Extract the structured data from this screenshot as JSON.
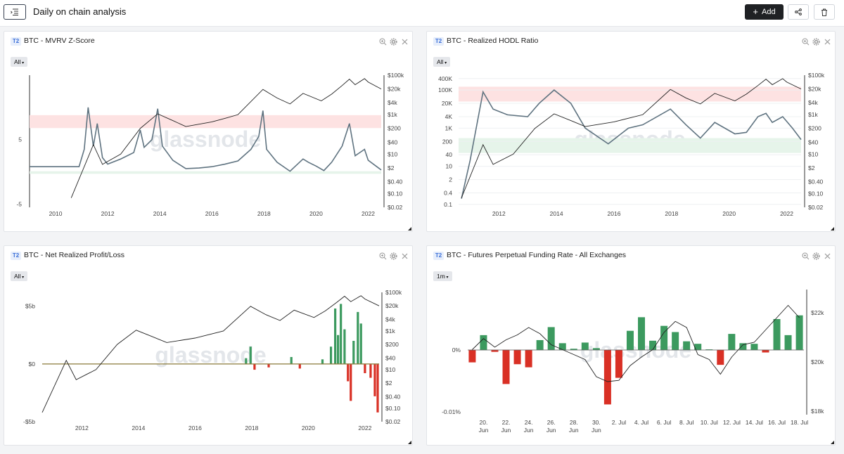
{
  "header": {
    "title": "Daily on chain analysis",
    "add_label": "Add"
  },
  "icons": {
    "menu": "list-menu-icon",
    "share": "share-icon",
    "delete": "trash-icon",
    "zoom": "zoom-icon",
    "settings": "gear-icon",
    "close": "close-icon"
  },
  "watermark": "glassnode",
  "tier_label": "T2",
  "chart_data": [
    {
      "id": "mvrv",
      "type": "line",
      "title": "BTC - MVRV Z-Score",
      "range": "All",
      "x_ticks": [
        "2010",
        "2012",
        "2014",
        "2016",
        "2018",
        "2020",
        "2022"
      ],
      "y_left_ticks": [
        "5",
        "-5"
      ],
      "y_right_ticks": [
        "$100k",
        "$20k",
        "$4k",
        "$1k",
        "$200",
        "$40",
        "$10",
        "$2",
        "$0.40",
        "$0.10",
        "$0.02"
      ],
      "bands": [
        {
          "color": "#fde2e2",
          "from": 6.8,
          "to": 8.8
        },
        {
          "color": "#e6f4ea",
          "from": -0.3,
          "to": 0.1
        }
      ],
      "y_range": [
        -5.5,
        15
      ],
      "series": [
        {
          "role": "metric",
          "color": "#5f7380",
          "x": [
            2009.0,
            2010.9,
            2011.1,
            2011.25,
            2011.45,
            2011.6,
            2011.8,
            2012.0,
            2012.5,
            2013.0,
            2013.25,
            2013.4,
            2013.7,
            2013.92,
            2014.1,
            2014.5,
            2015.0,
            2015.5,
            2016.0,
            2016.5,
            2017.0,
            2017.5,
            2017.8,
            2017.96,
            2018.1,
            2018.5,
            2019.0,
            2019.5,
            2019.7,
            2020.0,
            2020.3,
            2020.6,
            2021.0,
            2021.28,
            2021.5,
            2021.86,
            2022.0,
            2022.3,
            2022.5
          ],
          "y": [
            0.8,
            0.8,
            3.5,
            10.0,
            4.0,
            7.5,
            2.2,
            1.2,
            2.0,
            3.0,
            6.5,
            3.8,
            5.0,
            9.8,
            4.0,
            1.8,
            0.5,
            0.6,
            0.8,
            1.2,
            1.7,
            3.5,
            5.5,
            9.5,
            3.5,
            1.5,
            0.1,
            2.0,
            1.5,
            0.9,
            0.2,
            1.5,
            4.0,
            7.5,
            2.5,
            3.5,
            1.8,
            0.9,
            0.3
          ]
        },
        {
          "role": "price",
          "color": "#222",
          "x": [
            2010.6,
            2011.45,
            2011.8,
            2012.5,
            2013.25,
            2013.92,
            2014.5,
            2015.0,
            2016.0,
            2016.5,
            2017.0,
            2017.96,
            2018.5,
            2019.0,
            2019.5,
            2020.2,
            2020.6,
            2021.0,
            2021.28,
            2021.5,
            2021.86,
            2022.0,
            2022.5
          ],
          "y": [
            0.06,
            30,
            3,
            10,
            200,
            1100,
            500,
            250,
            430,
            650,
            1000,
            19000,
            7000,
            3500,
            12000,
            5000,
            11000,
            30000,
            63000,
            33000,
            67000,
            45000,
            20000
          ]
        }
      ]
    },
    {
      "id": "rhodl",
      "type": "line",
      "title": "BTC - Realized HODL Ratio",
      "range": "All",
      "x_ticks": [
        "2012",
        "2014",
        "2016",
        "2018",
        "2020",
        "2022"
      ],
      "y_left_ticks": [
        "400K",
        "100K",
        "20K",
        "4K",
        "1K",
        "200",
        "40",
        "10",
        "2",
        "0.4",
        "0.1"
      ],
      "y_right_ticks": [
        "$100k",
        "$20k",
        "$4k",
        "$1k",
        "$200",
        "$40",
        "$10",
        "$2",
        "$0.40",
        "$0.10",
        "$0.02"
      ],
      "bands": [
        {
          "color": "#fde2e2",
          "from": 25000,
          "to": 150000
        },
        {
          "color": "#e6f4ea",
          "from": 50,
          "to": 300
        }
      ],
      "series": [
        {
          "role": "metric",
          "color": "#5f7380",
          "x": [
            2010.7,
            2011.0,
            2011.45,
            2011.8,
            2012.3,
            2013.0,
            2013.4,
            2013.92,
            2014.5,
            2015.0,
            2015.8,
            2016.5,
            2017.0,
            2017.96,
            2018.5,
            2019.0,
            2019.5,
            2020.2,
            2020.6,
            2021.0,
            2021.28,
            2021.5,
            2021.86,
            2022.2,
            2022.5
          ],
          "y": [
            0.2,
            20,
            80000,
            10000,
            5000,
            4000,
            20000,
            100000,
            20000,
            1000,
            150,
            1000,
            1500,
            10000,
            1500,
            300,
            2000,
            500,
            600,
            4000,
            6000,
            2000,
            4000,
            1000,
            250
          ]
        },
        {
          "role": "price",
          "color": "#222",
          "x": [
            2010.7,
            2011.45,
            2011.8,
            2012.5,
            2013.25,
            2013.92,
            2014.5,
            2015.0,
            2016.0,
            2017.0,
            2017.96,
            2018.5,
            2019.0,
            2019.5,
            2020.2,
            2020.6,
            2021.0,
            2021.28,
            2021.5,
            2021.86,
            2022.0,
            2022.5
          ],
          "y": [
            0.06,
            30,
            3,
            10,
            200,
            1100,
            500,
            250,
            430,
            1000,
            19000,
            7000,
            3500,
            12000,
            5000,
            11000,
            30000,
            63000,
            33000,
            67000,
            45000,
            20000
          ]
        }
      ]
    },
    {
      "id": "nrpl",
      "type": "bar",
      "title": "BTC - Net Realized Profit/Loss",
      "range": "All",
      "x_ticks": [
        "2012",
        "2014",
        "2016",
        "2018",
        "2020",
        "2022"
      ],
      "y_left_ticks": [
        "$5b",
        "$0",
        "-$5b"
      ],
      "y_right_ticks": [
        "$100k",
        "$20k",
        "$4k",
        "$1k",
        "$200",
        "$40",
        "$10",
        "$2",
        "$0.40",
        "$0.10",
        "$0.02"
      ],
      "y_range_b": [
        -5,
        6.2
      ],
      "series": [
        {
          "role": "metric",
          "positive_color": "#3c9a5f",
          "negative_color": "#d93025",
          "x": [
            2017.8,
            2017.96,
            2018.1,
            2018.6,
            2019.4,
            2019.7,
            2020.5,
            2020.8,
            2020.95,
            2021.05,
            2021.15,
            2021.28,
            2021.4,
            2021.5,
            2021.6,
            2021.75,
            2021.86,
            2022.0,
            2022.2,
            2022.35,
            2022.45
          ],
          "y": [
            0.5,
            1.5,
            -0.5,
            -0.3,
            0.6,
            -0.4,
            0.4,
            1.5,
            4.8,
            2.5,
            5.2,
            3.0,
            -1.5,
            -3.2,
            2.0,
            4.5,
            3.5,
            -0.8,
            -1.2,
            -2.8,
            -4.2
          ]
        },
        {
          "role": "price",
          "color": "#222",
          "x": [
            2010.6,
            2011.45,
            2011.8,
            2012.5,
            2013.25,
            2013.92,
            2014.5,
            2015.0,
            2016.0,
            2017.0,
            2017.96,
            2018.5,
            2019.0,
            2019.5,
            2020.2,
            2020.6,
            2021.0,
            2021.28,
            2021.5,
            2021.86,
            2022.0,
            2022.5
          ],
          "y": [
            0.06,
            30,
            3,
            10,
            200,
            1100,
            500,
            250,
            430,
            1000,
            19000,
            7000,
            3500,
            12000,
            5000,
            11000,
            30000,
            63000,
            33000,
            67000,
            45000,
            20000
          ]
        }
      ]
    },
    {
      "id": "funding",
      "type": "bar",
      "title": "BTC - Futures Perpetual Funding Rate - All Exchanges",
      "range": "1m",
      "x_ticks": [
        [
          "20.",
          "Jun"
        ],
        [
          "22.",
          "Jun"
        ],
        [
          "24.",
          "Jun"
        ],
        [
          "26.",
          "Jun"
        ],
        [
          "28.",
          "Jun"
        ],
        [
          "30.",
          "Jun"
        ],
        [
          "2. Jul"
        ],
        [
          "4. Jul"
        ],
        [
          "6. Jul"
        ],
        [
          "8. Jul"
        ],
        [
          "10. Jul"
        ],
        [
          "12. Jul"
        ],
        [
          "14. Jul"
        ],
        [
          "16. Jul"
        ],
        [
          "18. Jul"
        ]
      ],
      "y_left_ticks": [
        "0%",
        "-0.01%"
      ],
      "y_right_ticks": [
        "$22k",
        "$20k",
        "$18k"
      ],
      "series": [
        {
          "role": "funding_rate",
          "positive_color": "#3c9a5f",
          "negative_color": "#d93025",
          "x": [
            19,
            20,
            21,
            22,
            23,
            24,
            25,
            26,
            27,
            28,
            29,
            30,
            31,
            32,
            33,
            34,
            35,
            36,
            37,
            38,
            39,
            40,
            41,
            42,
            43,
            44,
            45,
            46,
            47,
            48
          ],
          "y": [
            -0.002,
            0.0024,
            -0.0003,
            -0.0055,
            -0.0023,
            -0.0028,
            0.0016,
            0.0037,
            0.0011,
            0.0002,
            0.0012,
            0.0003,
            -0.0088,
            -0.0045,
            0.0031,
            0.0053,
            0.0015,
            0.0039,
            0.0029,
            0.0014,
            0.001,
            0.0001,
            -0.0024,
            0.0026,
            0.0011,
            0.001,
            -0.0004,
            0.005,
            0.0024,
            0.0056
          ]
        },
        {
          "role": "price",
          "color": "#222",
          "x": [
            19,
            20,
            21,
            22,
            23,
            24,
            25,
            26,
            27,
            28,
            29,
            30,
            31,
            32,
            33,
            34,
            35,
            36,
            37,
            38,
            39,
            40,
            41,
            42,
            43,
            44,
            45,
            46,
            47,
            48
          ],
          "y": [
            20500,
            20950,
            20600,
            20900,
            21100,
            21400,
            21150,
            20700,
            20500,
            20300,
            20100,
            19400,
            19200,
            19250,
            19850,
            20200,
            20500,
            21200,
            21650,
            21400,
            20300,
            20100,
            19500,
            20200,
            20700,
            20800,
            21300,
            21800,
            22300,
            21800
          ]
        }
      ]
    }
  ]
}
